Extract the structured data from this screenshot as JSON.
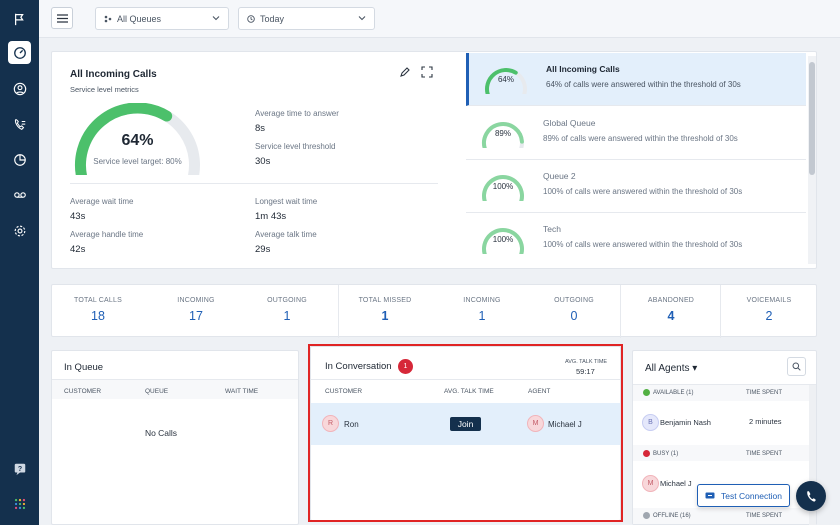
{
  "topbar": {
    "queue_filter": "All Queues",
    "date_filter": "Today"
  },
  "sla": {
    "title": "All Incoming Calls",
    "subtitle": "Service level metrics",
    "percent": "64%",
    "percent_value": 0.64,
    "target_text": "Service level target: 80%",
    "metrics": {
      "avg_answer_label": "Average time to answer",
      "avg_answer_value": "8s",
      "threshold_label": "Service level threshold",
      "threshold_value": "30s",
      "avg_wait_label": "Average wait time",
      "avg_wait_value": "43s",
      "longest_wait_label": "Longest wait time",
      "longest_wait_value": "1m 43s",
      "avg_handle_label": "Average handle time",
      "avg_handle_value": "42s",
      "avg_talk_label": "Average talk time",
      "avg_talk_value": "29s"
    }
  },
  "queues": [
    {
      "name": "All Incoming Calls",
      "percent": "64%",
      "value": 0.64,
      "desc": "64% of calls were answered within the threshold of 30s"
    },
    {
      "name": "Global Queue",
      "percent": "89%",
      "value": 0.89,
      "desc": "89% of calls were answered within the threshold of 30s"
    },
    {
      "name": "Queue 2",
      "percent": "100%",
      "value": 1.0,
      "desc": "100% of calls were answered within the threshold of 30s"
    },
    {
      "name": "Tech",
      "percent": "100%",
      "value": 1.0,
      "desc": "100% of calls were answered within the threshold of 30s"
    }
  ],
  "stats": [
    {
      "label": "TOTAL CALLS",
      "value": "18"
    },
    {
      "label": "INCOMING",
      "value": "17"
    },
    {
      "label": "OUTGOING",
      "value": "1"
    },
    {
      "label": "TOTAL MISSED",
      "value": "1"
    },
    {
      "label": "INCOMING",
      "value": "1"
    },
    {
      "label": "OUTGOING",
      "value": "0"
    },
    {
      "label": "ABANDONED",
      "value": "4"
    },
    {
      "label": "VOICEMAILS",
      "value": "2"
    }
  ],
  "in_queue": {
    "title": "In Queue",
    "col_customer": "CUSTOMER",
    "col_queue": "QUEUE",
    "col_wait": "WAIT TIME",
    "empty": "No Calls"
  },
  "in_conversation": {
    "title": "In Conversation",
    "count": "1",
    "avg_talk_label": "AVG. TALK TIME",
    "avg_talk_value": "59:17",
    "col_customer": "CUSTOMER",
    "col_avg": "AVG. TALK TIME",
    "col_agent": "AGENT",
    "row": {
      "customer_initial": "R",
      "customer": "Ron",
      "join_label": "Join",
      "agent_initial": "M",
      "agent": "Michael J"
    }
  },
  "agents": {
    "title": "All Agents",
    "available_label": "AVAILABLE (1)",
    "busy_label": "BUSY (1)",
    "offline_label": "OFFLINE (16)",
    "time_spent_label": "TIME SPENT",
    "available_agent_initial": "B",
    "available_agent": "Benjamin Nash",
    "available_time": "2 minutes",
    "busy_agent_initial": "M",
    "busy_agent": "Michael J",
    "colors": {
      "available": "#52b043",
      "busy": "#d62839",
      "offline": "#a0a7b0"
    }
  },
  "test_connection_label": "Test Connection",
  "colors": {
    "nav": "#14304d",
    "accent": "#1f5fb5",
    "gauge": "#4cc06b",
    "gauge_light": "#8ad6a0"
  }
}
